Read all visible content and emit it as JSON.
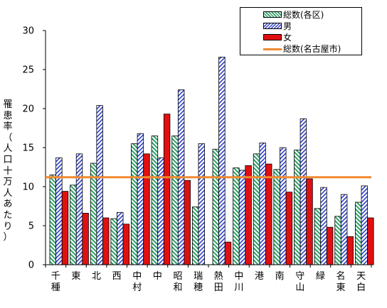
{
  "chart_data": {
    "type": "bar",
    "title": "",
    "xlabel": "",
    "ylabel": "罹患率（人口十万人あたり）",
    "ylim": [
      0,
      30
    ],
    "yticks": [
      0,
      5,
      10,
      15,
      20,
      25,
      30
    ],
    "grid": false,
    "legend_position": "top-right",
    "categories": [
      "千種",
      "東",
      "北",
      "西",
      "中村",
      "中",
      "昭和",
      "瑞穂",
      "熱田",
      "中川",
      "港",
      "南",
      "守山",
      "緑",
      "名東",
      "天白"
    ],
    "series": [
      {
        "name": "総数(各区)",
        "pattern": "diagonal-stripes",
        "color": "#2e9e66",
        "values": [
          11.5,
          10.2,
          13.0,
          5.9,
          15.5,
          16.5,
          16.5,
          7.4,
          14.8,
          12.4,
          14.2,
          12.2,
          14.7,
          7.2,
          6.2,
          8.0
        ]
      },
      {
        "name": "男",
        "pattern": "diagonal-stripes",
        "color": "#2d3fc8",
        "values": [
          13.7,
          14.2,
          20.4,
          6.7,
          16.8,
          13.7,
          22.4,
          15.5,
          26.6,
          12.1,
          15.6,
          15.0,
          18.7,
          9.9,
          9.0,
          10.1
        ]
      },
      {
        "name": "女",
        "pattern": "solid",
        "color": "#e01010",
        "values": [
          9.4,
          6.6,
          6.0,
          5.2,
          14.2,
          19.3,
          10.8,
          0,
          2.9,
          12.7,
          12.9,
          9.3,
          11.0,
          4.8,
          3.6,
          6.0
        ]
      }
    ],
    "reference_lines": [
      {
        "name": "総数(名古屋市)",
        "value": 11.2,
        "color": "#f08a30"
      }
    ]
  }
}
